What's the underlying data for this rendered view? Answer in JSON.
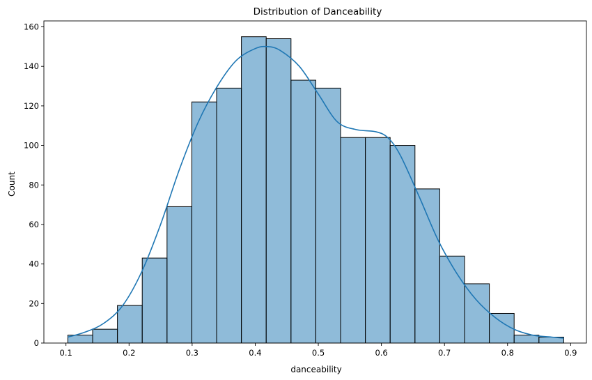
{
  "chart_data": {
    "type": "bar",
    "title": "Distribution of Danceability",
    "xlabel": "danceability",
    "ylabel": "Count",
    "xlim": [
      0.065,
      0.925
    ],
    "ylim": [
      0,
      163
    ],
    "grid": false,
    "bin_edges": [
      0.103,
      0.1423,
      0.1816,
      0.2209,
      0.2602,
      0.2995,
      0.3388,
      0.3781,
      0.4174,
      0.4567,
      0.496,
      0.5353,
      0.5746,
      0.6139,
      0.6532,
      0.6925,
      0.7318,
      0.7711,
      0.8104,
      0.8497,
      0.889
    ],
    "values": [
      4,
      7,
      19,
      43,
      69,
      122,
      129,
      155,
      154,
      133,
      129,
      104,
      104,
      100,
      78,
      44,
      30,
      15,
      4,
      3
    ],
    "kde": {
      "x": [
        0.103,
        0.13,
        0.16,
        0.19,
        0.22,
        0.25,
        0.28,
        0.31,
        0.34,
        0.37,
        0.4,
        0.42,
        0.44,
        0.47,
        0.5,
        0.53,
        0.56,
        0.59,
        0.61,
        0.63,
        0.66,
        0.69,
        0.72,
        0.75,
        0.78,
        0.81,
        0.84,
        0.87,
        0.889
      ],
      "y": [
        3,
        5.5,
        10,
        19,
        36,
        60,
        88,
        112,
        130,
        143,
        149,
        150,
        148,
        140,
        126,
        112,
        108,
        107,
        104,
        95,
        74,
        52,
        35,
        22,
        13,
        7,
        4,
        3,
        2.5
      ]
    },
    "xticks": [
      0.1,
      0.2,
      0.3,
      0.4,
      0.5,
      0.6,
      0.7,
      0.8,
      0.9
    ],
    "xtick_labels": [
      "0.1",
      "0.2",
      "0.3",
      "0.4",
      "0.5",
      "0.6",
      "0.7",
      "0.8",
      "0.9"
    ],
    "yticks": [
      0,
      20,
      40,
      60,
      80,
      100,
      120,
      140,
      160
    ],
    "ytick_labels": [
      "0",
      "20",
      "40",
      "60",
      "80",
      "100",
      "120",
      "140",
      "160"
    ],
    "colors": {
      "bar_fill": "#1f77b4",
      "kde_line": "#1f77b4"
    }
  }
}
